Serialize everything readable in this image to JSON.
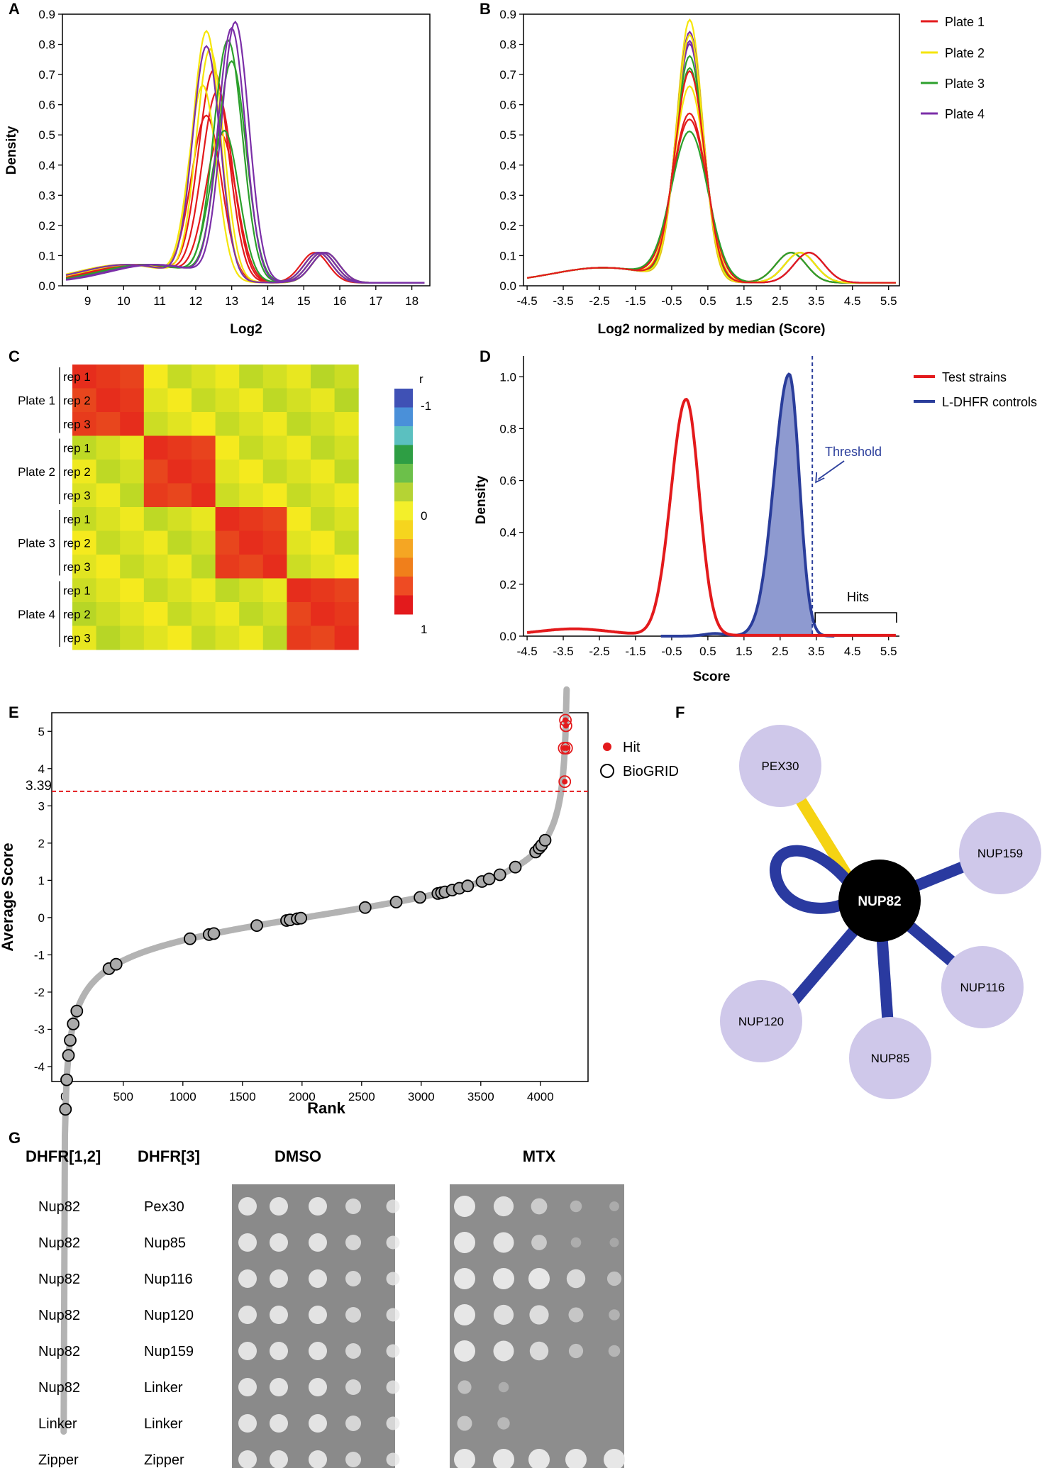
{
  "panels": {
    "A": "A",
    "B": "B",
    "C": "C",
    "D": "D",
    "E": "E",
    "F": "F",
    "G": "G"
  },
  "panelA": {
    "chart_data": {
      "type": "line",
      "xlabel": "Log2",
      "ylabel": "Density",
      "xlim": [
        8.3,
        18.5
      ],
      "ylim": [
        0,
        0.9
      ],
      "xticks": [
        "9",
        "10",
        "11",
        "12",
        "13",
        "14",
        "15",
        "16",
        "17",
        "18"
      ],
      "yticks": [
        "0.0",
        "0.1",
        "0.2",
        "0.3",
        "0.4",
        "0.5",
        "0.6",
        "0.7",
        "0.8",
        "0.9"
      ],
      "series": [
        {
          "name": "Plate 1",
          "color": "#e31a1c",
          "peaks": [
            {
              "mu": 12.3,
              "h": 0.54
            },
            {
              "mu": 12.6,
              "h": 0.62
            },
            {
              "mu": 12.5,
              "h": 0.69
            },
            {
              "mu": 12.7,
              "h": 0.48
            }
          ],
          "sd": 0.42
        },
        {
          "name": "Plate 2",
          "color": "#f5e50a",
          "peaks": [
            {
              "mu": 12.3,
              "h": 0.82
            },
            {
              "mu": 12.2,
              "h": 0.64
            },
            {
              "mu": 12.4,
              "h": 0.76
            }
          ],
          "sd": 0.38
        },
        {
          "name": "Plate 3",
          "color": "#2ca02c",
          "peaks": [
            {
              "mu": 12.9,
              "h": 0.79
            },
            {
              "mu": 12.8,
              "h": 0.49
            },
            {
              "mu": 13.0,
              "h": 0.72
            }
          ],
          "sd": 0.4
        },
        {
          "name": "Plate 4",
          "color": "#7b2fa8",
          "peaks": [
            {
              "mu": 13.1,
              "h": 0.85
            },
            {
              "mu": 12.3,
              "h": 0.77
            },
            {
              "mu": 13.0,
              "h": 0.83
            }
          ],
          "sd": 0.38
        }
      ],
      "second_mode": {
        "mu": 15.6,
        "h": 0.1
      }
    }
  },
  "panelB": {
    "chart_data": {
      "type": "line",
      "xlabel": "Log2 normalized by median (Score)",
      "xlim": [
        -4.6,
        5.8
      ],
      "ylim": [
        0,
        0.9
      ],
      "xticks": [
        "-4.5",
        "-3.5",
        "-2.5",
        "-1.5",
        "-0.5",
        "0.5",
        "1.5",
        "2.5",
        "3.5",
        "4.5",
        "5.5"
      ],
      "yticks": [
        "0.0",
        "0.1",
        "0.2",
        "0.3",
        "0.4",
        "0.5",
        "0.6",
        "0.7",
        "0.8",
        "0.9"
      ],
      "series_peaks": [
        0.86,
        0.82,
        0.79,
        0.7,
        0.64,
        0.55,
        0.53,
        0.49,
        0.78,
        0.74,
        0.81,
        0.69
      ],
      "series_colors": [
        "#f5e50a",
        "#7b2fa8",
        "#7b2fa8",
        "#2ca02c",
        "#f5e50a",
        "#e31a1c",
        "#e31a1c",
        "#2ca02c",
        "#7b2fa8",
        "#2ca02c",
        "#f5e50a",
        "#e31a1c"
      ],
      "second_mode": {
        "mu": 2.8,
        "h": 0.1
      }
    },
    "legend": [
      {
        "label": "Plate 1",
        "color": "#e31a1c"
      },
      {
        "label": "Plate 2",
        "color": "#f5e50a"
      },
      {
        "label": "Plate 3",
        "color": "#2ca02c"
      },
      {
        "label": "Plate 4",
        "color": "#7b2fa8"
      }
    ]
  },
  "panelC": {
    "chart_data": {
      "type": "heatmap",
      "plates": [
        "Plate 1",
        "Plate 2",
        "Plate 3",
        "Plate 4"
      ],
      "reps": [
        "rep 1",
        "rep 2",
        "rep 3"
      ],
      "within_plate_r": 0.95,
      "between_plate_r": 0.05,
      "colorbar_title": "r",
      "colorbar_ticks": [
        "-1",
        "0",
        "1"
      ],
      "colorbar_colors": [
        "#ffffff",
        "#3f51b5",
        "#4a90d9",
        "#5bc0c0",
        "#2e9e44",
        "#6cc04a",
        "#b5d334",
        "#f3ef2a",
        "#f6d51e",
        "#f5a623",
        "#f07f1b",
        "#ee4b23",
        "#e31a1c"
      ]
    }
  },
  "panelD": {
    "chart_data": {
      "type": "area",
      "xlabel": "Score",
      "ylabel": "Density",
      "xlim": [
        -4.6,
        5.8
      ],
      "ylim": [
        0,
        1.08
      ],
      "xticks": [
        "-4.5",
        "-3.5",
        "-2.5",
        "-1.5",
        "-0.5",
        "0.5",
        "1.5",
        "2.5",
        "3.5",
        "4.5",
        "5.5"
      ],
      "yticks": [
        "0.0",
        "0.2",
        "0.4",
        "0.6",
        "0.8",
        "1.0"
      ],
      "series": [
        {
          "name": "Test strains",
          "color": "#e31a1c",
          "peak_x": -0.1,
          "peak_y": 0.91
        },
        {
          "name": "L-DHFR controls",
          "color": "#2a3d9b",
          "peak_x": 2.75,
          "peak_y": 1.01
        }
      ],
      "threshold": 3.39,
      "annotations": {
        "threshold": "Threshold",
        "hits": "Hits"
      }
    }
  },
  "panelE": {
    "chart_data": {
      "type": "scatter",
      "xlabel": "Rank",
      "ylabel": "Average Score",
      "xlim": [
        -100,
        4400
      ],
      "ylim": [
        -4.4,
        5.5
      ],
      "xticks": [
        "0",
        "500",
        "1000",
        "1500",
        "2000",
        "2500",
        "3000",
        "3500",
        "4000"
      ],
      "yticks": [
        "-4",
        "-3",
        "-2",
        "-1",
        "0",
        "1",
        "2",
        "3",
        "4",
        "5"
      ],
      "threshold": 3.39,
      "threshold_label": "3.39",
      "n": 4230,
      "biogrid_ranks": [
        15,
        25,
        40,
        55,
        80,
        110,
        380,
        440,
        1060,
        1220,
        1260,
        1620,
        1870,
        1900,
        1960,
        1990,
        2530,
        2790,
        2990,
        3140,
        3170,
        3200,
        3260,
        3320,
        3390,
        3510,
        3570,
        3660,
        3790,
        3960,
        3990,
        4010,
        4040
      ],
      "hits": [
        {
          "rank": 4210,
          "score": 5.3
        },
        {
          "rank": 4215,
          "score": 5.15
        },
        {
          "rank": 4200,
          "score": 4.55
        },
        {
          "rank": 4220,
          "score": 4.55
        },
        {
          "rank": 4205,
          "score": 3.65
        }
      ]
    },
    "legend": [
      {
        "label": "Hit"
      },
      {
        "label": "BioGRID"
      }
    ]
  },
  "panelF": {
    "center": "NUP82",
    "nodes": [
      "PEX30",
      "NUP159",
      "NUP116",
      "NUP85",
      "NUP120"
    ]
  },
  "panelG": {
    "headers": {
      "dhfr12": "DHFR[1,2]",
      "dhfr3": "DHFR[3]",
      "dmso": "DMSO",
      "mtx": "MTX"
    },
    "rows": [
      {
        "a": "Nup82",
        "b": "Pex30",
        "mtx": [
          1,
          0.9,
          0.6,
          0.25,
          0.1
        ]
      },
      {
        "a": "Nup82",
        "b": "Nup85",
        "mtx": [
          1,
          0.95,
          0.55,
          0.15,
          0.05
        ]
      },
      {
        "a": "Nup82",
        "b": "Nup116",
        "mtx": [
          1,
          1,
          1,
          0.8,
          0.45
        ]
      },
      {
        "a": "Nup82",
        "b": "Nup120",
        "mtx": [
          1,
          0.9,
          0.85,
          0.5,
          0.2
        ]
      },
      {
        "a": "Nup82",
        "b": "Nup159",
        "mtx": [
          1,
          0.95,
          0.8,
          0.45,
          0.25
        ]
      },
      {
        "a": "Nup82",
        "b": "Linker",
        "mtx": [
          0.4,
          0.15,
          0,
          0,
          0
        ]
      },
      {
        "a": "Linker",
        "b": "Linker",
        "mtx": [
          0.5,
          0.3,
          0,
          0,
          0
        ]
      },
      {
        "a": "Zipper",
        "b": "Zipper",
        "mtx": [
          1,
          1,
          1,
          1,
          1
        ]
      }
    ]
  }
}
